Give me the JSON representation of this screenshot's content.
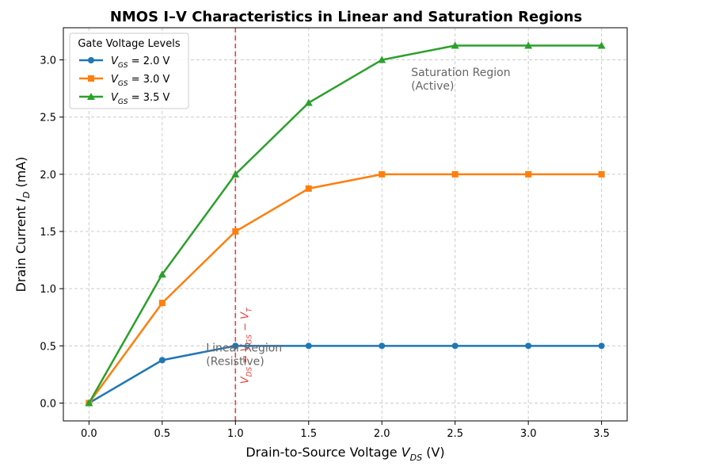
{
  "chart_data": {
    "type": "line",
    "title": "NMOS I–V Characteristics in Linear and Saturation Regions",
    "xlabel": "Drain-to-Source Voltage  V_DS (V)",
    "ylabel": "Drain Current  I_D (mA)",
    "xlim": [
      -0.175,
      3.675
    ],
    "ylim": [
      -0.156,
      3.281
    ],
    "xticks": [
      0.0,
      0.5,
      1.0,
      1.5,
      2.0,
      2.5,
      3.0,
      3.5
    ],
    "xtick_labels": [
      "0.0",
      "0.5",
      "1.0",
      "1.5",
      "2.0",
      "2.5",
      "3.0",
      "3.5"
    ],
    "yticks": [
      0.0,
      0.5,
      1.0,
      1.5,
      2.0,
      2.5,
      3.0
    ],
    "ytick_labels": [
      "0.0",
      "0.5",
      "1.0",
      "1.5",
      "2.0",
      "2.5",
      "3.0"
    ],
    "grid": true,
    "x": [
      0.0,
      0.5,
      1.0,
      1.5,
      2.0,
      2.5,
      3.0,
      3.5
    ],
    "series": [
      {
        "name": "V_GS = 2.0 V",
        "color": "#1f77b4",
        "marker": "circle",
        "values": [
          0.0,
          0.375,
          0.5,
          0.5,
          0.5,
          0.5,
          0.5,
          0.5
        ]
      },
      {
        "name": "V_GS = 3.0 V",
        "color": "#ff7f0e",
        "marker": "square",
        "values": [
          0.0,
          0.875,
          1.5,
          1.875,
          2.0,
          2.0,
          2.0,
          2.0
        ]
      },
      {
        "name": "V_GS = 3.5 V",
        "color": "#2ca02c",
        "marker": "triangle",
        "values": [
          0.0,
          1.125,
          2.0,
          2.625,
          3.0,
          3.125,
          3.125,
          3.125
        ]
      }
    ],
    "legend": {
      "title": "Gate Voltage Levels",
      "position": "top-left"
    },
    "reference_line": {
      "x": 1.0,
      "color": "#e8423a",
      "style": "dashed",
      "label": "V_DS = V_GS − V_T"
    },
    "annotations": [
      {
        "lines": [
          "Linear Region",
          "(Resistive)"
        ],
        "x": 0.8,
        "y": 0.45
      },
      {
        "lines": [
          "Saturation Region",
          "(Active)"
        ],
        "x": 2.2,
        "y": 2.86
      }
    ]
  }
}
